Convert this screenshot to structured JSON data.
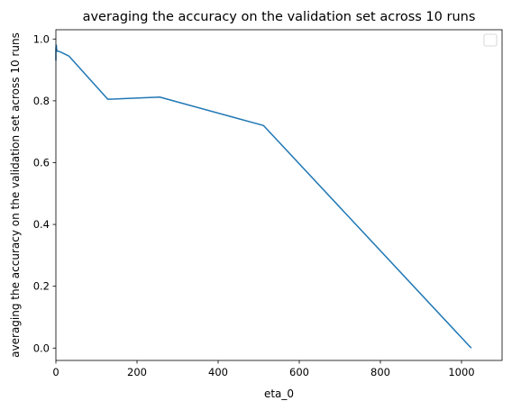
{
  "chart_data": {
    "type": "line",
    "title": "averaging the accuracy on the validation set across 10 runs",
    "xlabel": "eta_0",
    "ylabel": "averaging the accuracy on the validation set across 10 runs",
    "xlim": [
      0,
      1100
    ],
    "ylim": [
      -0.04,
      1.03
    ],
    "xticks": [
      0,
      200,
      400,
      600,
      800,
      1000
    ],
    "yticks": [
      0.0,
      0.2,
      0.4,
      0.6,
      0.8,
      1.0
    ],
    "xtick_labels": [
      "0",
      "200",
      "400",
      "600",
      "800",
      "1000"
    ],
    "ytick_labels": [
      "0.0",
      "0.2",
      "0.4",
      "0.6",
      "0.8",
      "1.0"
    ],
    "grid": false,
    "legend": "top-right",
    "series": [
      {
        "color": "#1f77b4",
        "x": [
          0.001,
          0.01,
          0.1,
          1,
          2,
          4,
          8,
          16,
          32,
          128,
          256,
          512,
          1024
        ],
        "y": [
          0.93,
          0.95,
          0.97,
          0.98,
          0.965,
          0.96,
          0.96,
          0.955,
          0.945,
          0.805,
          0.812,
          0.72,
          0.0
        ]
      }
    ]
  }
}
